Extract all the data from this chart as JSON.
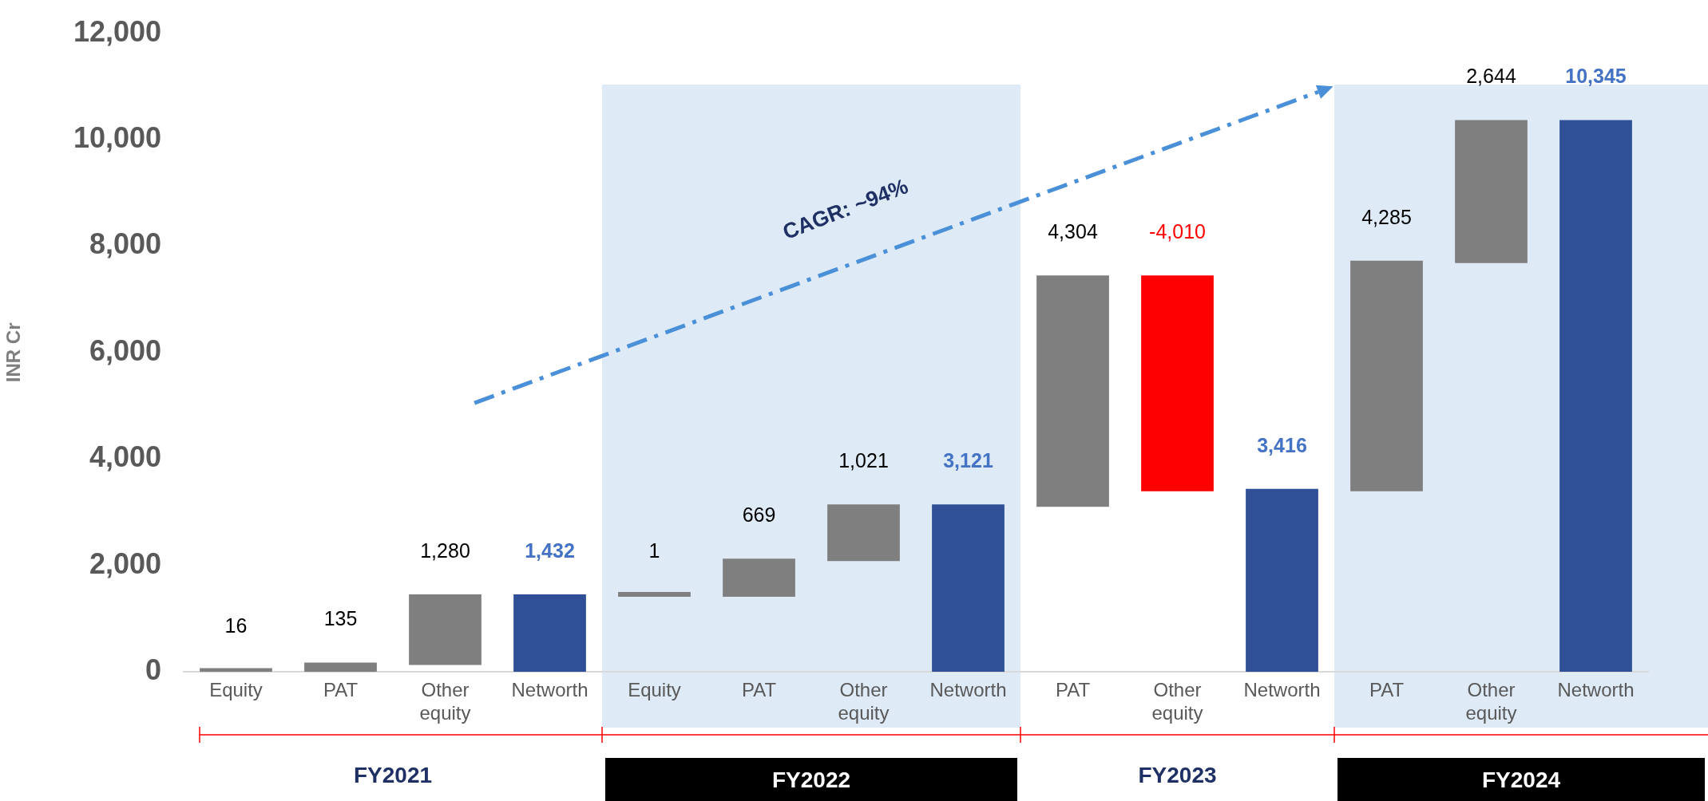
{
  "chart_data": {
    "type": "bar",
    "ylabel": "INR Cr",
    "categories": [
      "Equity",
      "PAT",
      "Other equity",
      "Networth",
      "Equity",
      "PAT",
      "Other equity",
      "Networth",
      "PAT",
      "Other equity",
      "Networth",
      "PAT",
      "Other equity",
      "Networth"
    ],
    "values": [
      16,
      135,
      1280,
      1432,
      1,
      669,
      1021,
      3121,
      4304,
      -4010,
      3416,
      4285,
      2644,
      10345
    ],
    "value_labels": [
      "16",
      "135",
      "1,280",
      "1,432",
      "1",
      "669",
      "1,021",
      "3,121",
      "4,304",
      "-4,010",
      "3,416",
      "4,285",
      "2,644",
      "10,345"
    ],
    "base": [
      0,
      16,
      151,
      0,
      1432,
      1433,
      2102,
      0,
      3121,
      7425,
      0,
      3416,
      7701,
      0
    ],
    "colors": [
      "#7f7f7f",
      "#7f7f7f",
      "#7f7f7f",
      "#2f5097",
      "#7f7f7f",
      "#7f7f7f",
      "#7f7f7f",
      "#2f5097",
      "#7f7f7f",
      "#ff0000",
      "#2f5097",
      "#7f7f7f",
      "#7f7f7f",
      "#2f5097"
    ],
    "ylim": [
      0,
      12000
    ],
    "yticks": [
      {
        "value": 0,
        "label": "0"
      },
      {
        "value": 2000,
        "label": "2,000"
      },
      {
        "value": 4000,
        "label": "4,000"
      },
      {
        "value": 6000,
        "label": "6,000"
      },
      {
        "value": 8000,
        "label": "8,000"
      },
      {
        "value": 10000,
        "label": "10,000"
      },
      {
        "value": 12000,
        "label": "12,000"
      }
    ],
    "grid": false,
    "legend": false,
    "annotations": [
      "CAGR: ~94%",
      "FY2021",
      "FY2022",
      "FY2023",
      "FY2024"
    ]
  }
}
